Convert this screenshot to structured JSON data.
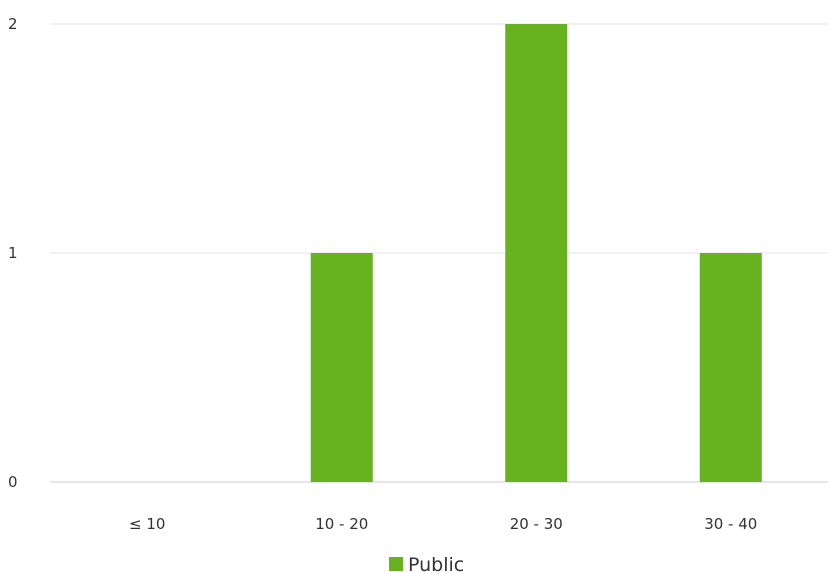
{
  "chart_data": {
    "type": "bar",
    "categories": [
      "≤ 10",
      "10 - 20",
      "20 - 30",
      "30 - 40"
    ],
    "series": [
      {
        "name": "Public",
        "values": [
          0,
          1,
          2,
          1
        ],
        "color": "#66b31f"
      }
    ],
    "yticks": [
      "0",
      "1",
      "2"
    ],
    "ylim": [
      0,
      2
    ],
    "grid": true,
    "legend": "bottom-center"
  }
}
